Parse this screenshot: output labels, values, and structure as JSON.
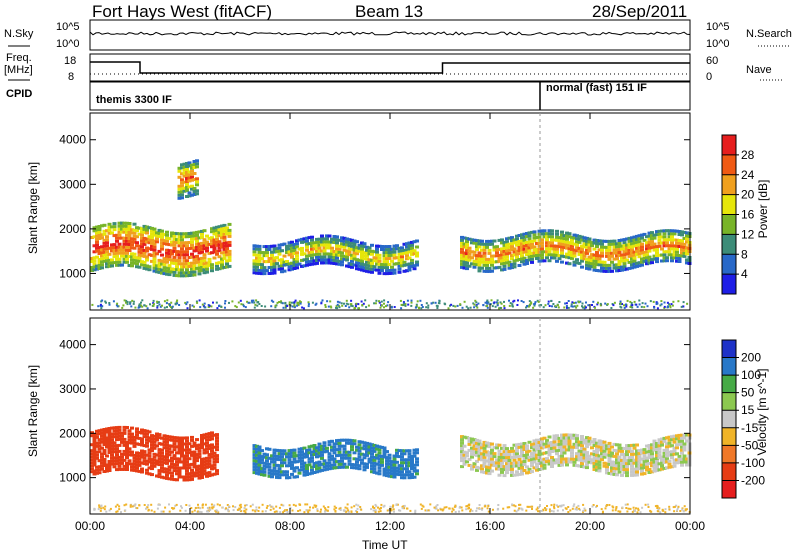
{
  "header": {
    "station": "Fort Hays West (fitACF)",
    "beam": "Beam 13",
    "date": "28/Sep/2011"
  },
  "top_panels": {
    "nsky_label": "N.Sky",
    "nsearch_label": "N.Search",
    "nsky_ticks": [
      "10^5",
      "10^0"
    ],
    "nsearch_ticks": [
      "10^5",
      "10^0"
    ],
    "freq_label": "Freq.",
    "freq_unit": "[MHz]",
    "freq_ticks": [
      "18",
      "8"
    ],
    "nave_label": "Nave",
    "nave_ticks": [
      "60",
      "0"
    ],
    "cpid_label": "CPID",
    "cpid_segments": [
      {
        "label": "themis 3300 IF",
        "start_hour": 0,
        "end_hour": 18
      },
      {
        "label": "normal (fast) 151 IF",
        "start_hour": 18,
        "end_hour": 24
      }
    ]
  },
  "chart_data": [
    {
      "type": "heatmap",
      "title": "",
      "xlabel": "Time UT",
      "ylabel": "Slant Range [km]",
      "x_ticks": [
        "00:00",
        "04:00",
        "08:00",
        "12:00",
        "16:00",
        "20:00",
        "00:00"
      ],
      "xlim_hours": [
        0,
        24
      ],
      "y_ticks": [
        1000,
        2000,
        3000,
        4000
      ],
      "ylim": [
        180,
        4600
      ],
      "colorbar": {
        "label": "Power [dB]",
        "ticks": [
          "4",
          "8",
          "12",
          "16",
          "20",
          "24",
          "28"
        ],
        "colors": [
          "#1e1ee6",
          "#2868c8",
          "#3c8c78",
          "#78b428",
          "#e6e60a",
          "#f0a01e",
          "#f05a14",
          "#e61e1e"
        ]
      },
      "features": [
        {
          "from_hour": 0.0,
          "to_hour": 5.5,
          "range_km": [
            1100,
            2100
          ],
          "value": 22
        },
        {
          "from_hour": 3.5,
          "to_hour": 4.2,
          "range_km": [
            2800,
            3600
          ],
          "value": 18
        },
        {
          "from_hour": 6.5,
          "to_hour": 13.0,
          "range_km": [
            1150,
            1800
          ],
          "value": 14
        },
        {
          "from_hour": 14.8,
          "to_hour": 24.0,
          "range_km": [
            1200,
            1900
          ],
          "value": 18
        }
      ]
    },
    {
      "type": "heatmap",
      "title": "",
      "xlabel": "Time UT",
      "ylabel": "Slant Range [km]",
      "x_ticks": [
        "00:00",
        "04:00",
        "08:00",
        "12:00",
        "16:00",
        "20:00",
        "00:00"
      ],
      "xlim_hours": [
        0,
        24
      ],
      "y_ticks": [
        1000,
        2000,
        3000,
        4000
      ],
      "ylim": [
        180,
        4600
      ],
      "colorbar": {
        "label": "Velocity [m s^-1]",
        "ticks": [
          "200",
          "100",
          "50",
          "15",
          "-15",
          "-50",
          "-100",
          "-200"
        ],
        "colors": [
          "#1e32c8",
          "#2878c8",
          "#46aa46",
          "#8cc850",
          "#c8c8c8",
          "#f0b428",
          "#f07828",
          "#e63c14",
          "#e61e1e"
        ]
      },
      "features": [
        {
          "from_hour": 0.0,
          "to_hour": 5.0,
          "range_km": [
            1100,
            2100
          ],
          "value": -150
        },
        {
          "from_hour": 6.5,
          "to_hour": 13.0,
          "range_km": [
            1150,
            1800
          ],
          "value": 120
        },
        {
          "from_hour": 14.8,
          "to_hour": 24.0,
          "range_km": [
            1200,
            1900
          ],
          "value": 0
        }
      ]
    }
  ]
}
